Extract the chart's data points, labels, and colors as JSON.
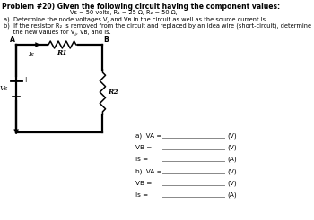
{
  "title": "Problem #20) Given the following circuit having the component values:",
  "subtitle1": "Vs = 50 volts, R₁ = 25 Ω, R₂ = 50 Ω,",
  "sub_a": "a)  Determine the node voltages V⁁ and Vʙ in the circuit as well as the source current Is.",
  "sub_b1": "b)  If the resistor R₂ is removed from the circuit and replaced by an idea wire (short-circuit), determine",
  "sub_b2": "     the new values for V⁁, Vʙ, and Is.",
  "bg_color": "#ffffff",
  "text_color": "#000000",
  "answer_labels_a": [
    "a)  VA =",
    "VB =",
    "Is ="
  ],
  "answer_labels_b": [
    "b)  VA =",
    "VB =",
    "Is ="
  ],
  "answer_units": [
    "(V)",
    "(V)",
    "(A)",
    "(V)",
    "(V)",
    "(A)"
  ]
}
